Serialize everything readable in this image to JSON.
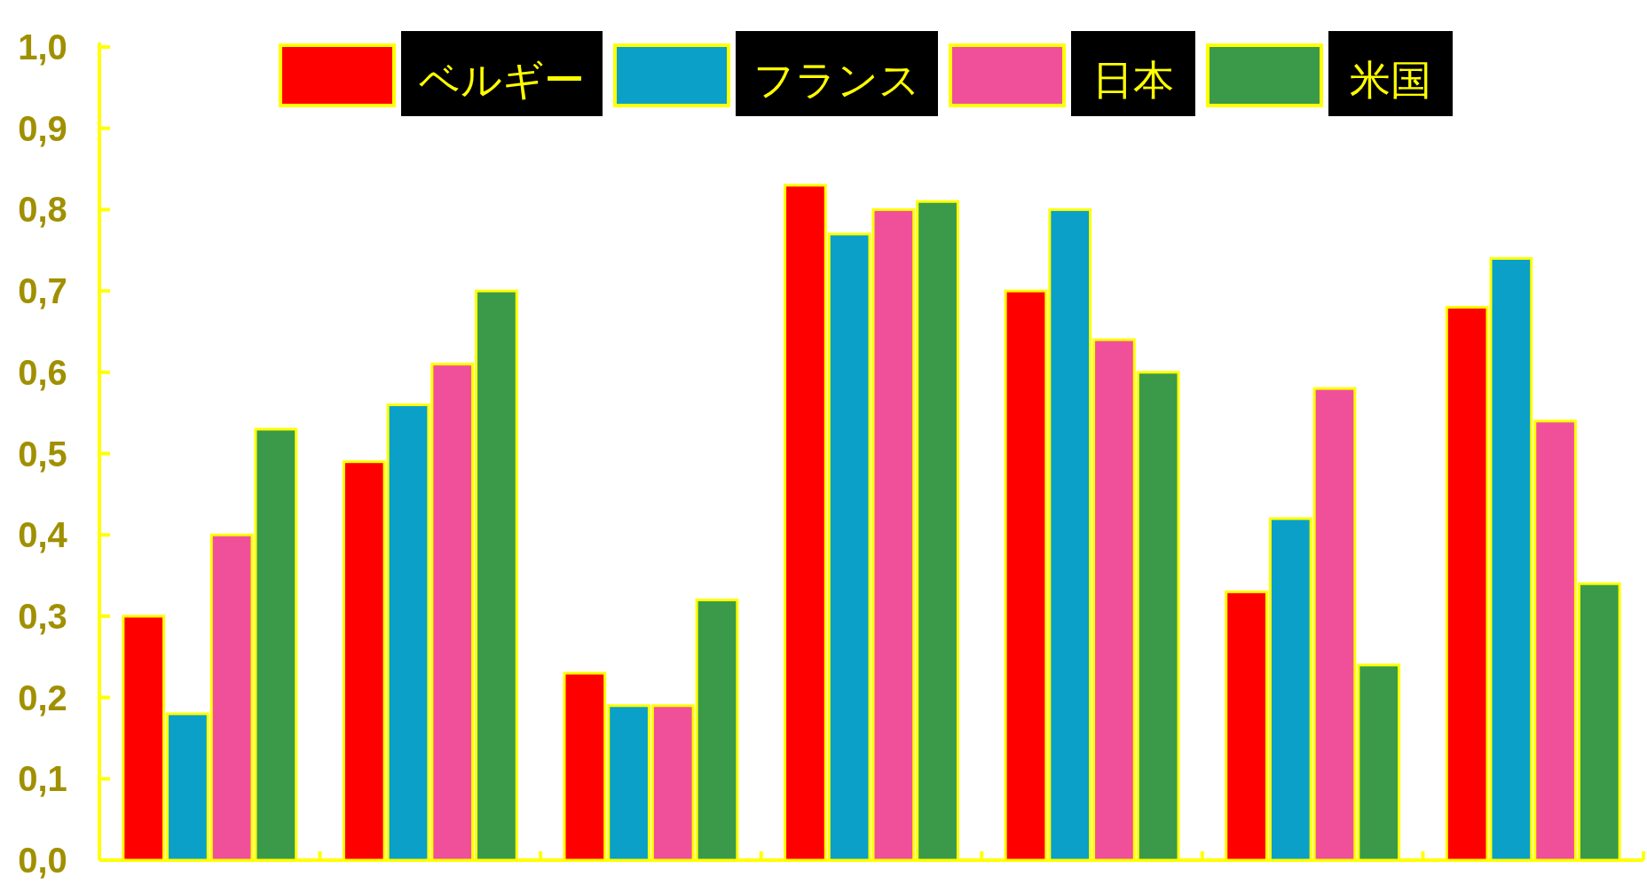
{
  "chart_data": {
    "type": "bar",
    "categories": [
      null,
      null,
      null,
      null,
      null,
      null,
      null
    ],
    "series": [
      {
        "name": "ベルギー",
        "color": "#ff0000",
        "values": [
          0.3,
          0.49,
          0.23,
          0.83,
          0.7,
          0.33,
          0.68
        ]
      },
      {
        "name": "フランス",
        "color": "#0aa0c8",
        "values": [
          0.18,
          0.56,
          0.19,
          0.77,
          0.8,
          0.42,
          0.74
        ]
      },
      {
        "name": "日本",
        "color": "#f0509a",
        "values": [
          0.4,
          0.61,
          0.19,
          0.8,
          0.64,
          0.58,
          0.54
        ]
      },
      {
        "name": "米国",
        "color": "#3a9a4a",
        "values": [
          0.53,
          0.7,
          0.32,
          0.81,
          0.6,
          0.24,
          0.34
        ]
      }
    ],
    "ylim": [
      0,
      1
    ],
    "yticks": [
      {
        "value": 0,
        "label": "0,0"
      },
      {
        "value": 0.1,
        "label": "0,1"
      },
      {
        "value": 0.2,
        "label": "0,2"
      },
      {
        "value": 0.3,
        "label": "0,3"
      },
      {
        "value": 0.4,
        "label": "0,4"
      },
      {
        "value": 0.5,
        "label": "0,5"
      },
      {
        "value": 0.6,
        "label": "0,6"
      },
      {
        "value": 0.7,
        "label": "0,7"
      },
      {
        "value": 0.8,
        "label": "0,8"
      },
      {
        "value": 0.9,
        "label": "0,9"
      },
      {
        "value": 1,
        "label": "1,0"
      }
    ],
    "legend": "top"
  }
}
